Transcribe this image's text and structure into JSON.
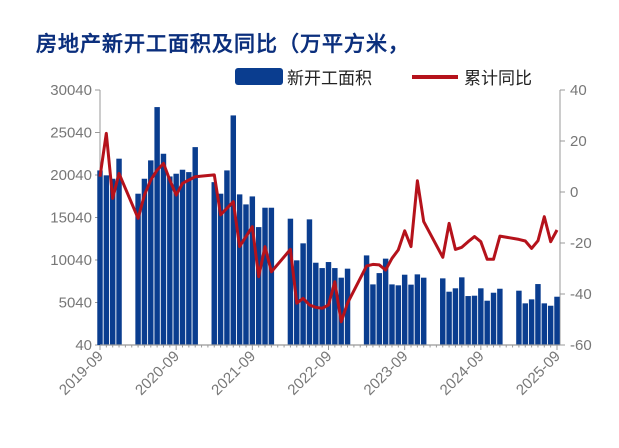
{
  "title": "房地产新开工面积及同比（万平方米，",
  "legend": {
    "bar": "新开工面积",
    "line": "累计同比"
  },
  "colors": {
    "bar": "#0a3d8f",
    "line": "#b5121b",
    "title": "#0b2f7d"
  },
  "chart_data": {
    "type": "bar+line",
    "title": "房地产新开工面积及同比（万平方米，",
    "left_axis": {
      "ylim": [
        40,
        30040
      ],
      "ticks": [
        "40",
        "5040",
        "10040",
        "15040",
        "20040",
        "25040",
        "30040"
      ]
    },
    "right_axis": {
      "ylim": [
        -60,
        40
      ],
      "ticks": [
        "40",
        "20",
        "0",
        "-20",
        "-40",
        "-60"
      ]
    },
    "x_ticks": [
      "2019-09",
      "2020-09",
      "2021-09",
      "2022-09",
      "2023-09",
      "2024-09",
      "2025-09"
    ],
    "x": [
      "2019-09",
      "2019-10",
      "2019-11",
      "2019-12",
      "2020-03",
      "2020-04",
      "2020-05",
      "2020-06",
      "2020-07",
      "2020-08",
      "2020-09",
      "2020-10",
      "2020-11",
      "2020-12",
      "2021-03",
      "2021-04",
      "2021-05",
      "2021-06",
      "2021-07",
      "2021-08",
      "2021-09",
      "2021-10",
      "2021-11",
      "2021-12",
      "2022-03",
      "2022-04",
      "2022-05",
      "2022-06",
      "2022-07",
      "2022-08",
      "2022-09",
      "2022-10",
      "2022-11",
      "2022-12",
      "2023-03",
      "2023-04",
      "2023-05",
      "2023-06",
      "2023-07",
      "2023-08",
      "2023-09",
      "2023-10",
      "2023-11",
      "2023-12",
      "2024-03",
      "2024-04",
      "2024-05",
      "2024-06",
      "2024-07",
      "2024-08",
      "2024-09",
      "2024-10",
      "2024-11",
      "2024-12",
      "2025-03",
      "2025-04",
      "2025-05",
      "2025-06",
      "2025-07",
      "2025-08",
      "2025-09"
    ],
    "series": [
      {
        "name": "新开工面积",
        "type": "bar",
        "axis": "left",
        "values": [
          20580,
          20000,
          19600,
          21960,
          17840,
          19600,
          21760,
          28030,
          22540,
          19870,
          20190,
          20660,
          20380,
          23320,
          19200,
          17840,
          20580,
          27050,
          17760,
          16580,
          17520,
          13910,
          16190,
          16190,
          14900,
          10000,
          12000,
          14820,
          9720,
          9090,
          9800,
          9090,
          7960,
          9020,
          10580,
          7170,
          8500,
          10200,
          7170,
          7060,
          8310,
          7140,
          8350,
          7960,
          7880,
          6310,
          6710,
          8000,
          5800,
          5840,
          6710,
          5250,
          6190,
          6660,
          6430,
          4940,
          5410,
          7210,
          4940,
          4660,
          5720
        ]
      },
      {
        "name": "累计同比",
        "type": "line",
        "axis": "right",
        "values": [
          6,
          23,
          -2.5,
          7.3,
          -10.3,
          -1.2,
          4.7,
          8.6,
          11.2,
          4.7,
          -1.2,
          3.4,
          4.7,
          6,
          6.7,
          -9,
          -6.4,
          -3.8,
          -21.4,
          -17.5,
          -13.6,
          -33.2,
          -21.4,
          -31.3,
          -22.5,
          -43.6,
          -41.7,
          -44.3,
          -45.2,
          -45.6,
          -44.3,
          -35.2,
          -50.9,
          -43.6,
          -29,
          -28.4,
          -28.6,
          -30.6,
          -26,
          -22.7,
          -15.2,
          -21.4,
          4.4,
          -11.6,
          -25.6,
          -12.3,
          -22.5,
          -21.7,
          -19.5,
          -17.5,
          -19.5,
          -26.4,
          -26.4,
          -17.3,
          -18.6,
          -19.2,
          -22.1,
          -19.1,
          -9.7,
          -19.5,
          -14.9
        ]
      }
    ]
  }
}
